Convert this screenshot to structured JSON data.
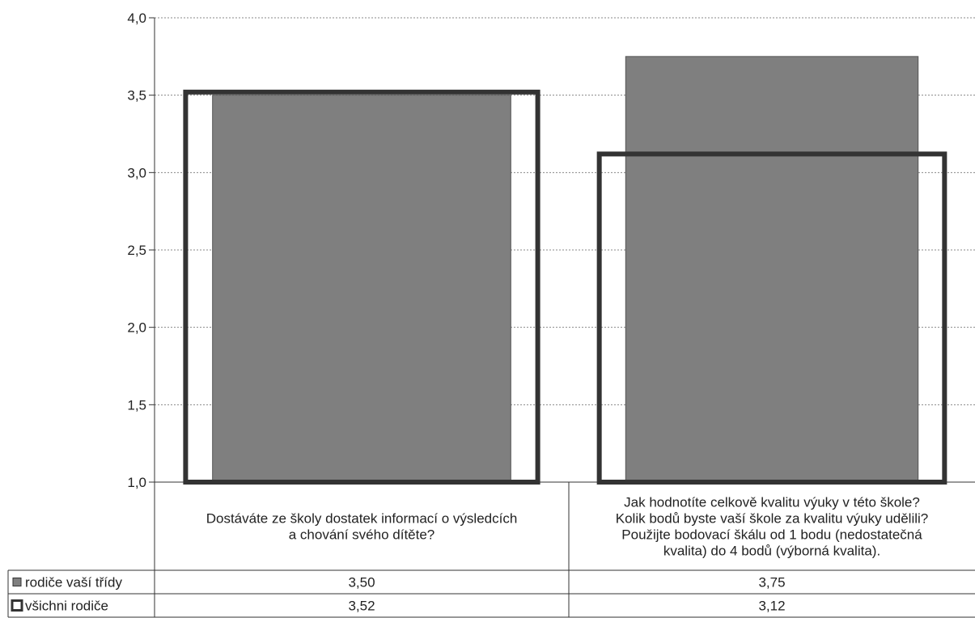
{
  "chart_data": {
    "type": "bar",
    "categories": [
      [
        "Dostáváte ze školy dostatek informací o výsledcích",
        "a chování svého dítěte?"
      ],
      [
        "Jak hodnotíte celkově kvalitu výuky v této škole?",
        "Kolik bodů byste vaší škole za kvalitu výuky udělili?",
        "Použijte bodovací škálu od 1 bodu (nedostatečná",
        "kvalita) do 4 bodů (výborná kvalita)."
      ]
    ],
    "series": [
      {
        "name": "rodiče vaší třídy",
        "values": [
          3.5,
          3.75
        ],
        "value_labels": [
          "3,50",
          "3,75"
        ],
        "color": "#7f7f7f",
        "style": "filled"
      },
      {
        "name": "všichni rodiče",
        "values": [
          3.52,
          3.12
        ],
        "value_labels": [
          "3,52",
          "3,12"
        ],
        "color": "#333333",
        "style": "outline"
      }
    ],
    "ylim": [
      1.0,
      4.0
    ],
    "yticks": [
      1.0,
      1.5,
      2.0,
      2.5,
      3.0,
      3.5,
      4.0
    ],
    "ytick_labels": [
      "1,0",
      "1,5",
      "2,0",
      "2,5",
      "3,0",
      "3,5",
      "4,0"
    ],
    "grid": true,
    "legend": "data-table-left",
    "data_table": true,
    "title": "",
    "xlabel": "",
    "ylabel": ""
  }
}
